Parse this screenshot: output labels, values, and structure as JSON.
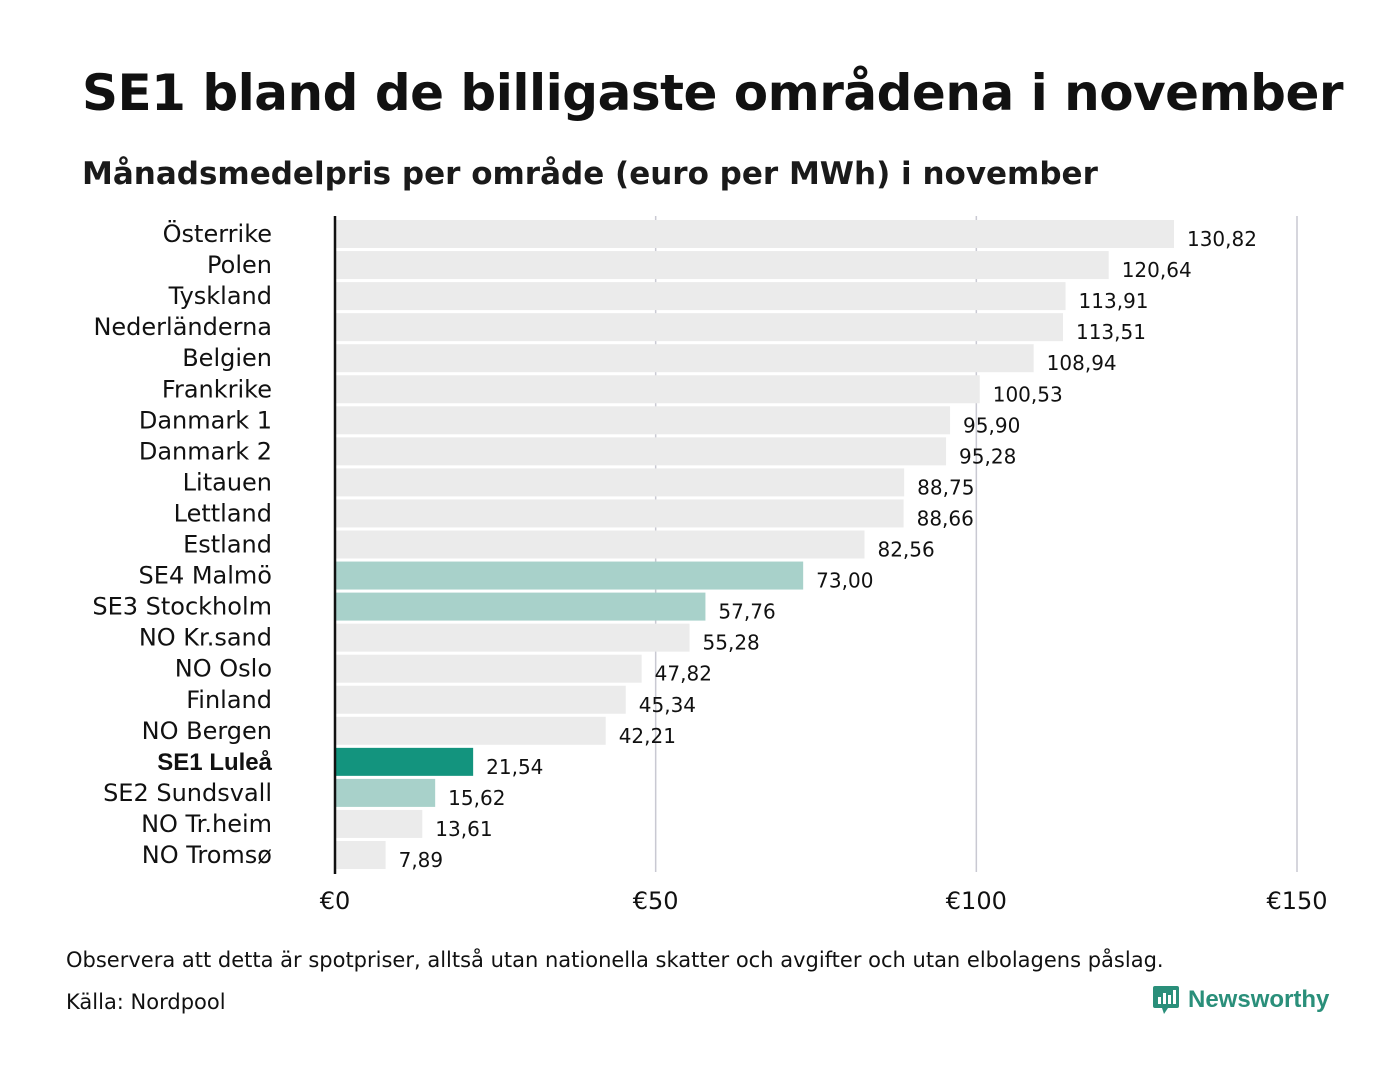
{
  "title": "SE1 bland de billigaste områdena i november",
  "subtitle": "Månadsmedelpris per område (euro per MWh) i november",
  "note": "Observera att detta är spotpriser, alltså utan nationella skatter och avgifter och utan elbolagens påslag.",
  "source": "Källa: Nordpool",
  "brand": "Newsworthy",
  "colors": {
    "default_bar": "#ebebeb",
    "swedish_bar": "#a8d1ca",
    "highlight_bar": "#13947e",
    "grid": "#c9c9d2",
    "axis": "#111111",
    "brand": "#2a8f7a"
  },
  "chart_data": {
    "type": "bar",
    "orientation": "horizontal",
    "xlim": [
      0,
      150
    ],
    "xticks": [
      {
        "value": 0,
        "label": "€0"
      },
      {
        "value": 50,
        "label": "€50"
      },
      {
        "value": 100,
        "label": "€100"
      },
      {
        "value": 150,
        "label": "€150"
      }
    ],
    "grid": true,
    "categories": [
      {
        "label": "Österrike",
        "value": 130.82,
        "display": "130,82",
        "group": "default"
      },
      {
        "label": "Polen",
        "value": 120.64,
        "display": "120,64",
        "group": "default"
      },
      {
        "label": "Tyskland",
        "value": 113.91,
        "display": "113,91",
        "group": "default"
      },
      {
        "label": "Nederländerna",
        "value": 113.51,
        "display": "113,51",
        "group": "default"
      },
      {
        "label": "Belgien",
        "value": 108.94,
        "display": "108,94",
        "group": "default"
      },
      {
        "label": "Frankrike",
        "value": 100.53,
        "display": "100,53",
        "group": "default"
      },
      {
        "label": "Danmark  1",
        "value": 95.9,
        "display": "95,90",
        "group": "default"
      },
      {
        "label": "Danmark  2",
        "value": 95.28,
        "display": "95,28",
        "group": "default"
      },
      {
        "label": "Litauen",
        "value": 88.75,
        "display": "88,75",
        "group": "default"
      },
      {
        "label": "Lettland",
        "value": 88.66,
        "display": "88,66",
        "group": "default"
      },
      {
        "label": "Estland",
        "value": 82.56,
        "display": "82,56",
        "group": "default"
      },
      {
        "label": "SE4  Malmö",
        "value": 73.0,
        "display": "73,00",
        "group": "swedish"
      },
      {
        "label": "SE3  Stockholm",
        "value": 57.76,
        "display": "57,76",
        "group": "swedish"
      },
      {
        "label": "NO Kr.sand",
        "value": 55.28,
        "display": "55,28",
        "group": "default"
      },
      {
        "label": "NO Oslo",
        "value": 47.82,
        "display": "47,82",
        "group": "default"
      },
      {
        "label": "Finland",
        "value": 45.34,
        "display": "45,34",
        "group": "default"
      },
      {
        "label": "NO Bergen",
        "value": 42.21,
        "display": "42,21",
        "group": "default"
      },
      {
        "label": "SE1 Luleå",
        "value": 21.54,
        "display": "21,54",
        "group": "highlight"
      },
      {
        "label": "SE2  Sundsvall",
        "value": 15.62,
        "display": "15,62",
        "group": "swedish"
      },
      {
        "label": "NO Tr.heim",
        "value": 13.61,
        "display": "13,61",
        "group": "default"
      },
      {
        "label": "NO Tromsø",
        "value": 7.89,
        "display": "7,89",
        "group": "default"
      }
    ]
  }
}
